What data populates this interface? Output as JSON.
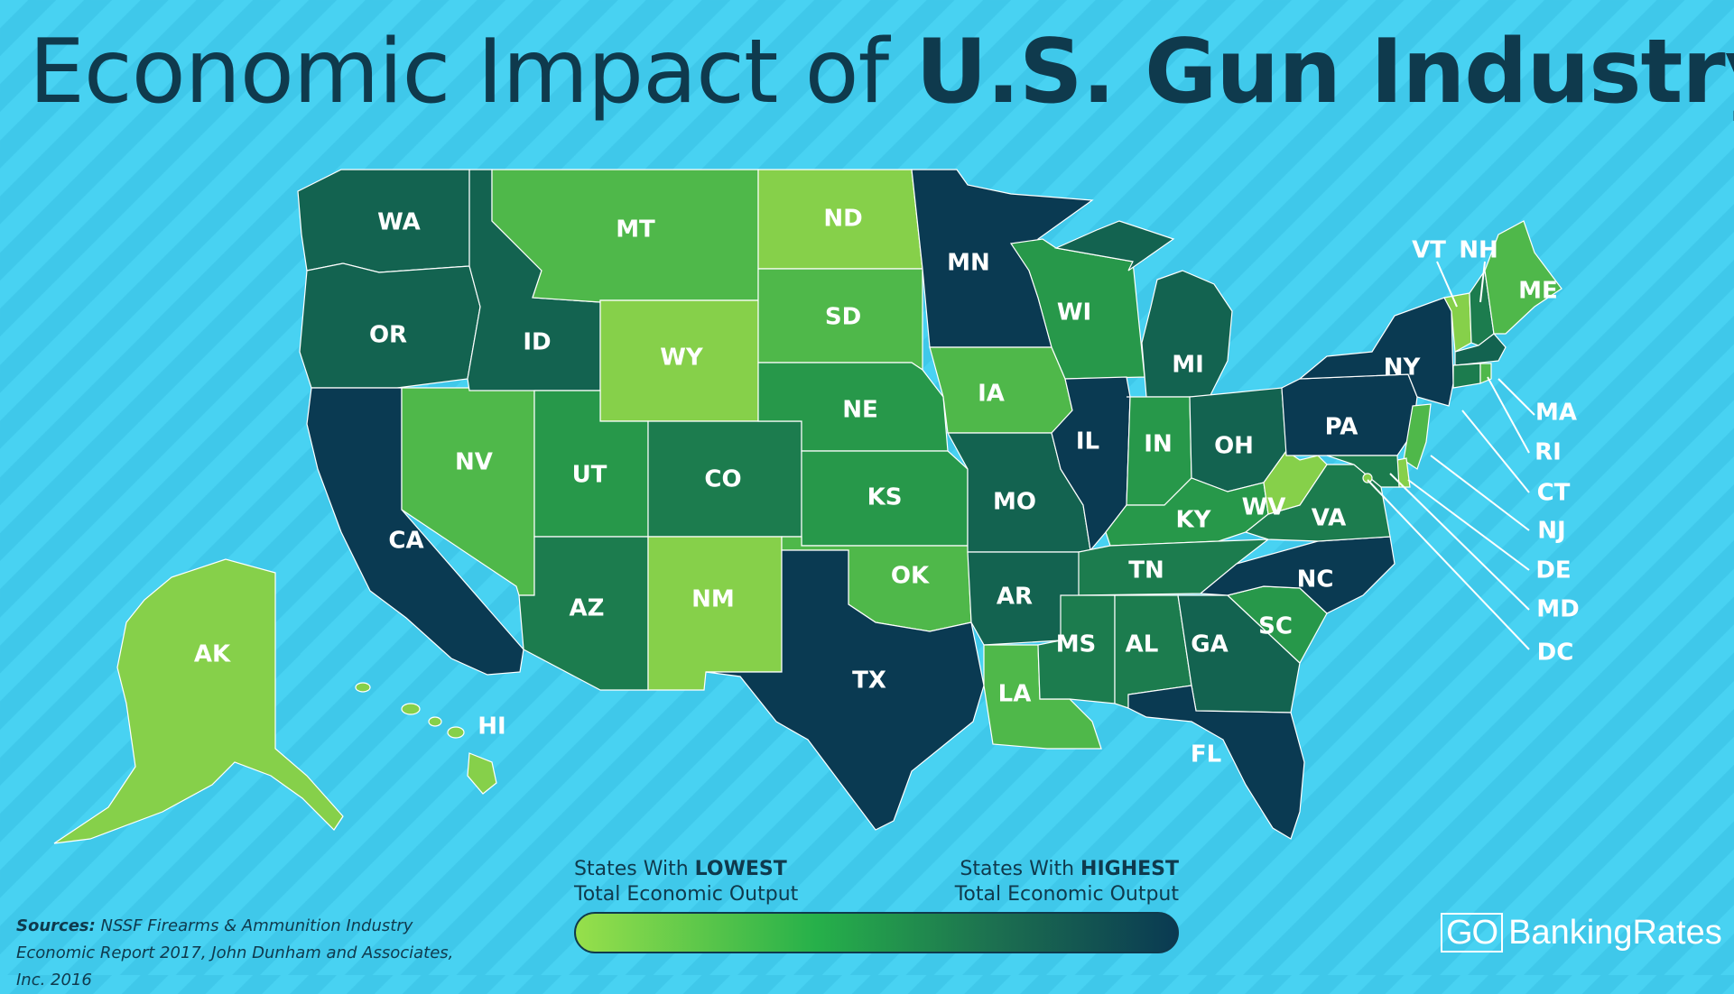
{
  "title": {
    "light": "Economic Impact of ",
    "bold": "U.S. Gun Industry"
  },
  "colors": {
    "tier1": "#0a3a52",
    "tier2": "#136350",
    "tier3": "#1c7c4e",
    "tier4": "#27984a",
    "tier5": "#4fb84a",
    "tier6": "#86d04a",
    "ocean": "#48d2f2",
    "text": "#0f3a4d"
  },
  "states": [
    {
      "code": "WA",
      "tier": 2
    },
    {
      "code": "OR",
      "tier": 2
    },
    {
      "code": "CA",
      "tier": 1
    },
    {
      "code": "NV",
      "tier": 5
    },
    {
      "code": "ID",
      "tier": 2
    },
    {
      "code": "MT",
      "tier": 5
    },
    {
      "code": "WY",
      "tier": 6
    },
    {
      "code": "UT",
      "tier": 4
    },
    {
      "code": "CO",
      "tier": 3
    },
    {
      "code": "AZ",
      "tier": 3
    },
    {
      "code": "NM",
      "tier": 6
    },
    {
      "code": "ND",
      "tier": 6
    },
    {
      "code": "SD",
      "tier": 5
    },
    {
      "code": "NE",
      "tier": 4
    },
    {
      "code": "KS",
      "tier": 4
    },
    {
      "code": "OK",
      "tier": 5
    },
    {
      "code": "TX",
      "tier": 1
    },
    {
      "code": "MN",
      "tier": 1
    },
    {
      "code": "IA",
      "tier": 5
    },
    {
      "code": "MO",
      "tier": 2
    },
    {
      "code": "AR",
      "tier": 2
    },
    {
      "code": "LA",
      "tier": 5
    },
    {
      "code": "WI",
      "tier": 4
    },
    {
      "code": "IL",
      "tier": 1
    },
    {
      "code": "MI",
      "tier": 2
    },
    {
      "code": "IN",
      "tier": 4
    },
    {
      "code": "OH",
      "tier": 2
    },
    {
      "code": "KY",
      "tier": 4
    },
    {
      "code": "TN",
      "tier": 3
    },
    {
      "code": "MS",
      "tier": 3
    },
    {
      "code": "AL",
      "tier": 3
    },
    {
      "code": "GA",
      "tier": 2
    },
    {
      "code": "FL",
      "tier": 1
    },
    {
      "code": "SC",
      "tier": 4
    },
    {
      "code": "NC",
      "tier": 1
    },
    {
      "code": "VA",
      "tier": 3
    },
    {
      "code": "WV",
      "tier": 6
    },
    {
      "code": "PA",
      "tier": 1
    },
    {
      "code": "NY",
      "tier": 1
    },
    {
      "code": "VT",
      "tier": 6
    },
    {
      "code": "NH",
      "tier": 3
    },
    {
      "code": "ME",
      "tier": 5
    },
    {
      "code": "MA",
      "tier": 2
    },
    {
      "code": "CT",
      "tier": 3
    },
    {
      "code": "RI",
      "tier": 5
    },
    {
      "code": "NJ",
      "tier": 5
    },
    {
      "code": "DE",
      "tier": 6
    },
    {
      "code": "MD",
      "tier": 3
    },
    {
      "code": "DC",
      "tier": 6
    },
    {
      "code": "AK",
      "tier": 6
    },
    {
      "code": "HI",
      "tier": 6
    }
  ],
  "legend": {
    "low_prefix": "States With ",
    "low_bold": "LOWEST",
    "low_line2": "Total Economic Output",
    "high_prefix": "States With ",
    "high_bold": "HIGHEST",
    "high_line2": "Total Economic Output"
  },
  "sources": {
    "label": "Sources:",
    "text": " NSSF Firearms & Ammunition Industry Economic Report 2017, John Dunham and Associates, Inc. 2016"
  },
  "logo": {
    "go": "GO",
    "rest": "BankingRates"
  }
}
